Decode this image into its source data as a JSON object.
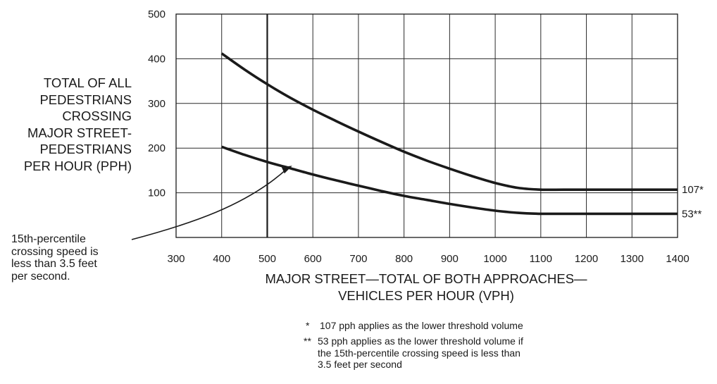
{
  "chart_data": {
    "type": "line",
    "ylabel_lines": [
      "TOTAL OF ALL",
      "PEDESTRIANS",
      "CROSSING",
      "MAJOR STREET-",
      "PEDESTRIANS",
      "PER HOUR (PPH)"
    ],
    "xlabel_lines": [
      "MAJOR STREET—TOTAL OF BOTH APPROACHES—",
      "VEHICLES PER HOUR (VPH)"
    ],
    "x_ticks": [
      "300",
      "400",
      "500",
      "600",
      "700",
      "800",
      "900",
      "1000",
      "1100",
      "1200",
      "1300",
      "1400"
    ],
    "y_ticks": [
      "100",
      "200",
      "300",
      "400",
      "500"
    ],
    "xlim": [
      300,
      1400
    ],
    "ylim": [
      0,
      500
    ],
    "grid": true,
    "reference_line_x": 500,
    "series": [
      {
        "end_label": "107*",
        "x": [
          400,
          450,
          500,
          550,
          600,
          650,
          700,
          750,
          800,
          850,
          900,
          950,
          1000,
          1050,
          1100,
          1150,
          1200,
          1250,
          1300,
          1350,
          1400
        ],
        "y": [
          412,
          376,
          343,
          313,
          286,
          261,
          237,
          214,
          192,
          172,
          154,
          137,
          122,
          111,
          107,
          107,
          107,
          107,
          107,
          107,
          107
        ]
      },
      {
        "end_label": "53**",
        "x": [
          400,
          450,
          500,
          550,
          600,
          650,
          700,
          750,
          800,
          850,
          900,
          950,
          1000,
          1050,
          1100,
          1150,
          1200,
          1250,
          1300,
          1350,
          1400
        ],
        "y": [
          203,
          185,
          169,
          155,
          141,
          128,
          116,
          104,
          93,
          84,
          75,
          67,
          60,
          55,
          53,
          53,
          53,
          53,
          53,
          53,
          53
        ]
      }
    ],
    "annotation": [
      "15th-percentile",
      "crossing speed is",
      "less than 3.5 feet",
      "per second."
    ],
    "annotation_arrow_target": {
      "x": 550,
      "y": 159
    },
    "footnotes": [
      {
        "mark": "*",
        "lines": [
          "107 pph applies as the lower threshold volume"
        ]
      },
      {
        "mark": "**",
        "lines": [
          "53 pph applies as the lower threshold volume if",
          "the 15th-percentile crossing speed is less than",
          "3.5 feet per second"
        ]
      }
    ]
  }
}
